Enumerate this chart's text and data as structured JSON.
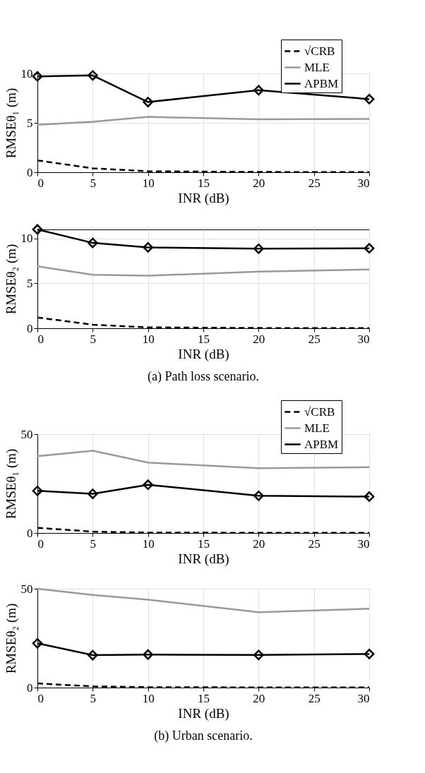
{
  "chart_data": [
    {
      "type": "line",
      "xlabel": "INR (dB)",
      "ylabel": "RMSEθ₁ (m)",
      "x": [
        0,
        5,
        10,
        20,
        30
      ],
      "xlim": [
        0,
        30
      ],
      "xticks": [
        0,
        5,
        10,
        15,
        20,
        25,
        30
      ],
      "ylim": [
        0,
        10
      ],
      "yticks": [
        0,
        5,
        10
      ],
      "grid": true,
      "legend": "top right",
      "series": [
        {
          "name": "√CRB",
          "color": "#000000",
          "line_style": "dashed",
          "marker": "none",
          "values": [
            1.2,
            0.4,
            0.1,
            0.03,
            0.01
          ]
        },
        {
          "name": "MLE",
          "color": "#999999",
          "line_style": "solid",
          "marker": "none",
          "values": [
            4.8,
            5.1,
            5.6,
            5.35,
            5.4
          ]
        },
        {
          "name": "APBM",
          "color": "#000000",
          "line_style": "solid",
          "marker": "diamond",
          "values": [
            9.7,
            9.8,
            7.1,
            8.3,
            7.4
          ]
        }
      ]
    },
    {
      "type": "line",
      "xlabel": "INR (dB)",
      "ylabel": "RMSEθ₂ (m)",
      "x": [
        0,
        5,
        10,
        20,
        30
      ],
      "xlim": [
        0,
        30
      ],
      "xticks": [
        0,
        5,
        10,
        15,
        20,
        25,
        30
      ],
      "ylim": [
        0,
        11
      ],
      "yticks": [
        0,
        5,
        10
      ],
      "grid": true,
      "annotations": [
        "(a) Path loss scenario."
      ],
      "series": [
        {
          "color": "#000000",
          "line_style": "dashed",
          "marker": "none",
          "values": [
            1.2,
            0.4,
            0.1,
            0.03,
            0.01
          ]
        },
        {
          "color": "#999999",
          "line_style": "solid",
          "marker": "none",
          "values": [
            6.9,
            5.95,
            5.85,
            6.3,
            6.55
          ]
        },
        {
          "color": "#000000",
          "line_style": "solid",
          "marker": "diamond",
          "values": [
            11.0,
            9.5,
            9.0,
            8.85,
            8.9
          ]
        }
      ]
    },
    {
      "type": "line",
      "xlabel": "INR (dB)",
      "ylabel": "RMSEθ₁ (m)",
      "x": [
        0,
        5,
        10,
        20,
        30
      ],
      "xlim": [
        0,
        30
      ],
      "xticks": [
        0,
        5,
        10,
        15,
        20,
        25,
        30
      ],
      "ylim": [
        0,
        50
      ],
      "yticks": [
        0,
        50
      ],
      "grid": true,
      "legend": "top right",
      "series": [
        {
          "name": "√CRB",
          "color": "#000000",
          "line_style": "dashed",
          "marker": "none",
          "values": [
            2.6,
            0.7,
            0.2,
            0.1,
            0.1
          ]
        },
        {
          "name": "MLE",
          "color": "#999999",
          "line_style": "solid",
          "marker": "none",
          "values": [
            38.8,
            41.6,
            35.6,
            32.8,
            33.3
          ]
        },
        {
          "name": "APBM",
          "color": "#000000",
          "line_style": "solid",
          "marker": "diamond",
          "values": [
            21.3,
            19.8,
            24.4,
            18.8,
            18.4
          ]
        }
      ]
    },
    {
      "type": "line",
      "xlabel": "INR (dB)",
      "ylabel": "RMSEθ₂ (m)",
      "x": [
        0,
        5,
        10,
        20,
        30
      ],
      "xlim": [
        0,
        30
      ],
      "xticks": [
        0,
        5,
        10,
        15,
        20,
        25,
        30
      ],
      "ylim": [
        0,
        50
      ],
      "yticks": [
        0,
        50
      ],
      "grid": true,
      "annotations": [
        "(b) Urban scenario."
      ],
      "series": [
        {
          "color": "#000000",
          "line_style": "dashed",
          "marker": "none",
          "values": [
            2.1,
            0.6,
            0.2,
            0.1,
            0.1
          ]
        },
        {
          "color": "#999999",
          "line_style": "solid",
          "marker": "none",
          "values": [
            50,
            46.9,
            44.5,
            38.1,
            39.9
          ]
        },
        {
          "color": "#000000",
          "line_style": "solid",
          "marker": "diamond",
          "values": [
            22.4,
            16.4,
            16.7,
            16.5,
            17.0
          ]
        }
      ]
    }
  ]
}
